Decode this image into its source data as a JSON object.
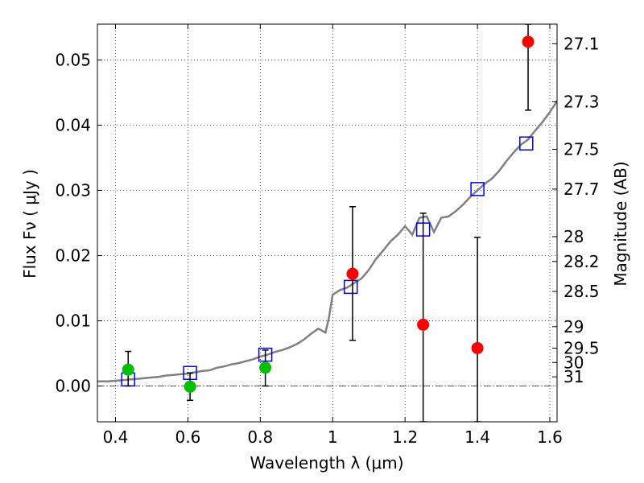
{
  "chart_data": {
    "type": "scatter",
    "xlabel": "Wavelength  λ (μm)",
    "ylabel": "Flux  Fν  ( μJy )",
    "y2label": "Magnitude (AB)",
    "xlim": [
      0.35,
      1.62
    ],
    "ylim": [
      -0.0055,
      0.0555
    ],
    "grid": true,
    "x_ticks": [
      0.4,
      0.6,
      0.8,
      1.0,
      1.2,
      1.4,
      1.6
    ],
    "x_tick_labels": [
      "0.4",
      "0.6",
      "0.8",
      "1",
      "1.2",
      "1.4",
      "1.6"
    ],
    "y_ticks": [
      0.0,
      0.01,
      0.02,
      0.03,
      0.04,
      0.05
    ],
    "y_tick_labels": [
      "0.00",
      "0.01",
      "0.02",
      "0.03",
      "0.04",
      "0.05"
    ],
    "mag_ticks": [
      {
        "label": "27.1",
        "flux": 0.0525
      },
      {
        "label": "27.3",
        "flux": 0.0436
      },
      {
        "label": "27.5",
        "flux": 0.0363
      },
      {
        "label": "27.7",
        "flux": 0.0302
      },
      {
        "label": "28",
        "flux": 0.0229
      },
      {
        "label": "28.2",
        "flux": 0.0191
      },
      {
        "label": "28.5",
        "flux": 0.0145
      },
      {
        "label": "29",
        "flux": 0.0091
      },
      {
        "label": "29.5",
        "flux": 0.0058
      },
      {
        "label": "30",
        "flux": 0.0036
      },
      {
        "label": "31",
        "flux": 0.0014
      }
    ],
    "colors": {
      "model": "#808080",
      "green": "#00c000",
      "red": "#ff0000",
      "square": "#0000ff",
      "errorbar": "#000000"
    },
    "series": [
      {
        "kind": "model_spectrum",
        "points": [
          [
            0.35,
            0.0007
          ],
          [
            0.38,
            0.0007
          ],
          [
            0.4,
            0.0008
          ],
          [
            0.42,
            0.0009
          ],
          [
            0.44,
            0.001
          ],
          [
            0.46,
            0.0011
          ],
          [
            0.48,
            0.0012
          ],
          [
            0.5,
            0.0013
          ],
          [
            0.52,
            0.0014
          ],
          [
            0.54,
            0.0016
          ],
          [
            0.56,
            0.0017
          ],
          [
            0.58,
            0.0018
          ],
          [
            0.6,
            0.0019
          ],
          [
            0.62,
            0.0021
          ],
          [
            0.64,
            0.0023
          ],
          [
            0.66,
            0.0024
          ],
          [
            0.68,
            0.0028
          ],
          [
            0.7,
            0.003
          ],
          [
            0.72,
            0.0033
          ],
          [
            0.74,
            0.0035
          ],
          [
            0.76,
            0.0038
          ],
          [
            0.78,
            0.0041
          ],
          [
            0.8,
            0.0045
          ],
          [
            0.82,
            0.0048
          ],
          [
            0.84,
            0.0052
          ],
          [
            0.86,
            0.0055
          ],
          [
            0.88,
            0.0059
          ],
          [
            0.9,
            0.0064
          ],
          [
            0.92,
            0.0071
          ],
          [
            0.94,
            0.008
          ],
          [
            0.96,
            0.0088
          ],
          [
            0.98,
            0.0082
          ],
          [
            0.99,
            0.0105
          ],
          [
            1.0,
            0.014
          ],
          [
            1.02,
            0.0147
          ],
          [
            1.04,
            0.0151
          ],
          [
            1.06,
            0.0158
          ],
          [
            1.08,
            0.0165
          ],
          [
            1.1,
            0.0178
          ],
          [
            1.12,
            0.0195
          ],
          [
            1.14,
            0.0208
          ],
          [
            1.16,
            0.0222
          ],
          [
            1.18,
            0.0232
          ],
          [
            1.2,
            0.0245
          ],
          [
            1.22,
            0.0232
          ],
          [
            1.24,
            0.0258
          ],
          [
            1.26,
            0.026
          ],
          [
            1.28,
            0.0236
          ],
          [
            1.3,
            0.0258
          ],
          [
            1.32,
            0.026
          ],
          [
            1.34,
            0.0268
          ],
          [
            1.36,
            0.0278
          ],
          [
            1.38,
            0.029
          ],
          [
            1.4,
            0.03
          ],
          [
            1.42,
            0.031
          ],
          [
            1.44,
            0.0318
          ],
          [
            1.46,
            0.033
          ],
          [
            1.48,
            0.0345
          ],
          [
            1.5,
            0.0358
          ],
          [
            1.52,
            0.037
          ],
          [
            1.54,
            0.0378
          ],
          [
            1.56,
            0.0392
          ],
          [
            1.58,
            0.0405
          ],
          [
            1.6,
            0.042
          ],
          [
            1.62,
            0.0437
          ]
        ]
      },
      {
        "kind": "model_photometry_squares",
        "points": [
          [
            0.435,
            0.001
          ],
          [
            0.606,
            0.002
          ],
          [
            0.814,
            0.0048
          ],
          [
            1.05,
            0.0152
          ],
          [
            1.25,
            0.024
          ],
          [
            1.4,
            0.0302
          ],
          [
            1.535,
            0.0372
          ]
        ]
      },
      {
        "kind": "observed_detections",
        "color": "green",
        "points": [
          {
            "x": 0.435,
            "y": 0.0025,
            "err_low": 0.0,
            "err_high": 0.0053
          },
          {
            "x": 0.606,
            "y": -0.0001,
            "err_low": -0.0022,
            "err_high": 0.002
          },
          {
            "x": 0.814,
            "y": 0.0028,
            "err_low": 0.0,
            "err_high": 0.0055
          }
        ]
      },
      {
        "kind": "observed_nir",
        "color": "red",
        "points": [
          {
            "x": 1.055,
            "y": 0.0172,
            "err_low": 0.007,
            "err_high": 0.0275
          },
          {
            "x": 1.25,
            "y": 0.0094,
            "err_low": -0.0055,
            "err_high": 0.0265
          },
          {
            "x": 1.4,
            "y": 0.0058,
            "err_low": -0.0055,
            "err_high": 0.0228
          },
          {
            "x": 1.54,
            "y": 0.0528,
            "err_low": 0.0423,
            "err_high": 0.0555
          }
        ]
      }
    ]
  }
}
